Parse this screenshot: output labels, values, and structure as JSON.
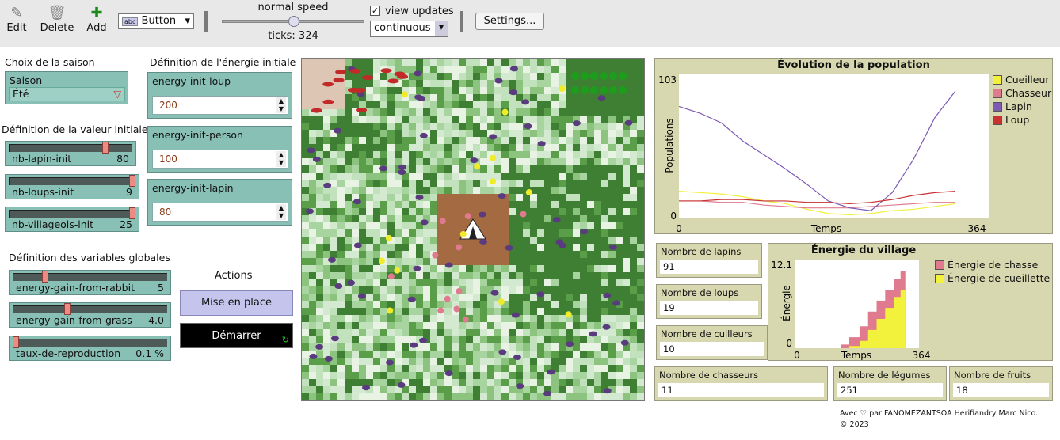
{
  "toolbar": {
    "edit": "Edit",
    "delete": "Delete",
    "add": "Add",
    "widget_type": "Button",
    "speed_label": "normal speed",
    "speed_value": 0.5,
    "ticks_label": "ticks: 324",
    "view_updates": "view updates",
    "update_mode": "continuous",
    "settings": "Settings..."
  },
  "season": {
    "heading": "Choix de la saison",
    "label": "Saison",
    "value": "Été"
  },
  "initial_values": {
    "heading": "Définition de la valeur initiale",
    "sliders": [
      {
        "name": "nb-lapin-init",
        "value": "80",
        "fraction": 0.8
      },
      {
        "name": "nb-loups-init",
        "value": "9",
        "fraction": 1.0
      },
      {
        "name": "nb-villageois-init",
        "value": "25",
        "fraction": 1.0
      }
    ]
  },
  "energy_init": {
    "heading": "Définition de l'énergie initiale",
    "inputs": [
      {
        "name": "energy-init-loup",
        "value": "200"
      },
      {
        "name": "energy-init-person",
        "value": "100"
      },
      {
        "name": "energy-init-lapin",
        "value": "80"
      }
    ]
  },
  "globals": {
    "heading": "Définition des variables globales",
    "sliders": [
      {
        "name": "energy-gain-from-rabbit",
        "value": "5",
        "fraction": 0.2
      },
      {
        "name": "energy-gain-from-grass",
        "value": "4.0",
        "fraction": 0.35
      },
      {
        "name": "taux-de-reproduction",
        "value": "0.1 %",
        "fraction": 0.0
      }
    ]
  },
  "actions": {
    "heading": "Actions",
    "setup": "Mise en place",
    "go": "Démarrer"
  },
  "population_plot": {
    "title": "Évolution de la population",
    "ylabel": "Populations",
    "xlabel": "Temps",
    "ymax": "103",
    "ymin": "0",
    "xmin": "0",
    "xmax": "364",
    "legend": [
      "Cueilleur",
      "Chasseur",
      "Lapin",
      "Loup"
    ],
    "colors": [
      "#f2f23c",
      "#e07a8e",
      "#7d5ab4",
      "#c83232"
    ]
  },
  "chart_data": [
    {
      "type": "line",
      "title": "Évolution de la population",
      "xlabel": "Temps",
      "ylabel": "Populations",
      "xlim": [
        0,
        364
      ],
      "ylim": [
        0,
        103
      ],
      "x": [
        0,
        25,
        50,
        75,
        100,
        125,
        150,
        175,
        200,
        225,
        250,
        275,
        300,
        324
      ],
      "series": [
        {
          "name": "Cueilleur",
          "values": [
            19,
            18,
            17,
            15,
            12,
            10,
            6,
            3,
            2,
            3,
            5,
            6,
            8,
            10
          ]
        },
        {
          "name": "Chasseur",
          "values": [
            12,
            12,
            11,
            11,
            9,
            8,
            7,
            7,
            7,
            8,
            9,
            10,
            11,
            11
          ]
        },
        {
          "name": "Lapin",
          "values": [
            80,
            75,
            68,
            55,
            45,
            35,
            24,
            12,
            7,
            5,
            18,
            42,
            72,
            91
          ]
        },
        {
          "name": "Loup",
          "values": [
            12,
            12,
            13,
            13,
            12,
            12,
            11,
            11,
            10,
            11,
            13,
            16,
            18,
            19
          ]
        }
      ]
    },
    {
      "type": "area",
      "title": "Énergie du village",
      "xlabel": "Temps",
      "ylabel": "Énergie",
      "xlim": [
        0,
        364
      ],
      "ylim": [
        0,
        12.1
      ],
      "x": [
        0,
        135,
        160,
        190,
        215,
        240,
        265,
        290,
        310,
        324
      ],
      "series": [
        {
          "name": "Énergie de chasse",
          "values": [
            0,
            0.5,
            1.5,
            3,
            5,
            6.5,
            8,
            9.5,
            10.5,
            12.1
          ]
        },
        {
          "name": "Énergie de cueillette",
          "values": [
            0,
            0,
            0.3,
            1,
            2.5,
            4,
            5.5,
            7,
            8,
            8.8
          ]
        }
      ]
    }
  ],
  "monitors": {
    "lapins": {
      "label": "Nombre de lapins",
      "value": "91"
    },
    "loups": {
      "label": "Nombre de loups",
      "value": "19"
    },
    "cuilleurs": {
      "label": "Nombre de cuilleurs",
      "value": "10"
    },
    "chasseurs": {
      "label": "Nombre de chasseurs",
      "value": "11"
    },
    "legumes": {
      "label": "Nombre de légumes",
      "value": "251"
    },
    "fruits": {
      "label": "Nombre de fruits",
      "value": "18"
    }
  },
  "energy_plot": {
    "title": "Énergie du village",
    "ylabel": "Énergie",
    "xlabel": "Temps",
    "ymax": "12.1",
    "ymin": "0",
    "xmin": "0",
    "xmax": "364",
    "legend": [
      "Énergie de chasse",
      "Énergie de cueillette"
    ],
    "colors": [
      "#e07a8e",
      "#f2f23c"
    ]
  },
  "footer": {
    "credit": "Avec ♡ par FANOMEZANTSOA Herifiandry Marc Nico.",
    "year": "© 2023"
  }
}
